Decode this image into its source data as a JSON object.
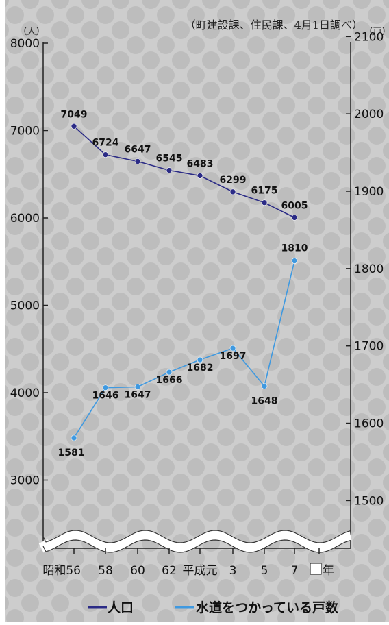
{
  "colors": {
    "background": "#c8c8c8",
    "population": "#2b2b86",
    "households": "#3f99e0",
    "axis": "#222222"
  },
  "chart_data": {
    "type": "line",
    "source_note": "（町建設課、住民課、4月1日調べ）",
    "categories": [
      "昭和56",
      "58",
      "60",
      "62",
      "平成元",
      "3",
      "5",
      "7"
    ],
    "year_suffix": "年",
    "left_axis": {
      "unit": "（人）",
      "range": [
        2200,
        8000
      ],
      "ticks": [
        3000,
        4000,
        5000,
        6000,
        7000,
        8000
      ]
    },
    "right_axis": {
      "unit": "（戸）",
      "range": [
        1430,
        2100
      ],
      "ticks": [
        1500,
        1600,
        1700,
        1800,
        1900,
        2000,
        2100
      ]
    },
    "series": [
      {
        "name": "人口",
        "axis": "left",
        "values": [
          7049,
          6724,
          6647,
          6545,
          6483,
          6299,
          6175,
          6005
        ]
      },
      {
        "name": "水道をつかっている戸数",
        "axis": "right",
        "values": [
          1581,
          1646,
          1647,
          1666,
          1682,
          1697,
          1648,
          1810
        ]
      }
    ],
    "legend_position": "bottom",
    "axis_break": true
  }
}
